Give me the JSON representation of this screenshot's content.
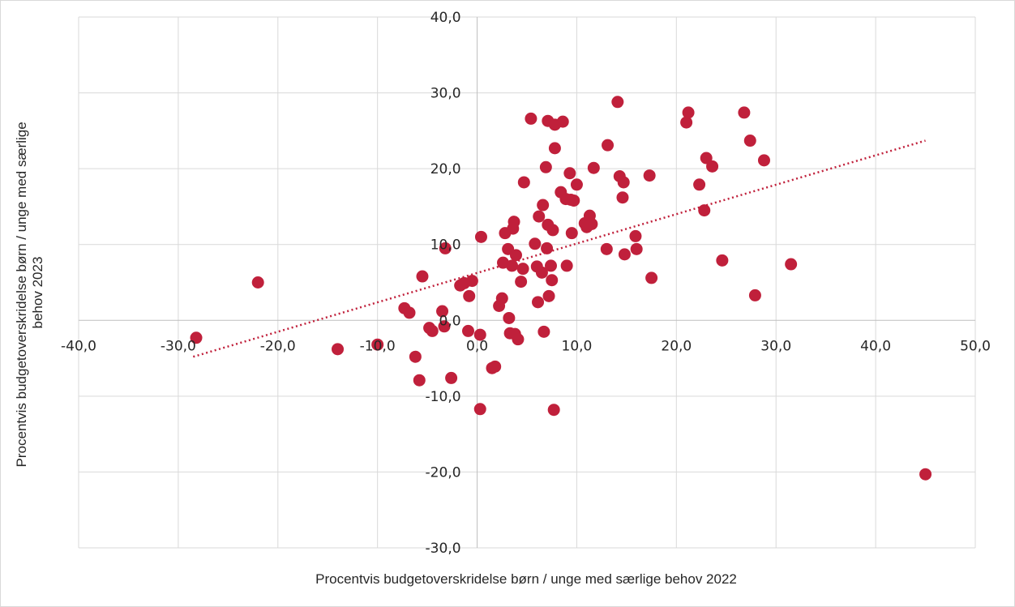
{
  "chart_data": {
    "type": "scatter",
    "title": "",
    "xlabel": "Procentvis budgetoverskridelse børn / unge med særlige behov 2022",
    "ylabel": "Procentvis budgetoverskridelse børn / unge med særlige behov 2023",
    "xlim": [
      -40,
      50
    ],
    "ylim": [
      -30,
      40
    ],
    "x_ticks": [
      -40,
      -30,
      -20,
      -10,
      0,
      10,
      20,
      30,
      40,
      50
    ],
    "y_ticks": [
      -30,
      -20,
      -10,
      0,
      10,
      20,
      30,
      40
    ],
    "x_tick_labels": [
      "-40,0",
      "-30,0",
      "-20,0",
      "-10,0",
      "0,0",
      "10,0",
      "20,0",
      "30,0",
      "40,0",
      "50,0"
    ],
    "y_tick_labels": [
      "-30,0",
      "-20,0",
      "-10,0",
      "0,0",
      "10,0",
      "20,0",
      "30,0",
      "40,0"
    ],
    "grid": true,
    "legend": "none",
    "point_color": "#c0203b",
    "trendline": {
      "type": "linear",
      "style": "dotted",
      "color": "#c0203b",
      "from": [
        -28.5,
        -4.8
      ],
      "to": [
        45,
        23.7
      ]
    },
    "points": [
      [
        -28.2,
        -2.3
      ],
      [
        -22,
        5
      ],
      [
        -14,
        -3.8
      ],
      [
        -10,
        -3.2
      ],
      [
        -7.3,
        1.6
      ],
      [
        -6.8,
        1
      ],
      [
        -6.2,
        -4.8
      ],
      [
        -5.8,
        -7.9
      ],
      [
        -5.5,
        5.8
      ],
      [
        -4.8,
        -1
      ],
      [
        -4.5,
        -1.4
      ],
      [
        -3.5,
        1.2
      ],
      [
        -3.3,
        -0.8
      ],
      [
        -3.2,
        9.5
      ],
      [
        -2.6,
        -7.6
      ],
      [
        -1.7,
        4.6
      ],
      [
        -1.3,
        4.9
      ],
      [
        -0.9,
        -1.4
      ],
      [
        -0.8,
        3.2
      ],
      [
        -0.5,
        5.2
      ],
      [
        0.3,
        -11.7
      ],
      [
        0.4,
        11
      ],
      [
        0.3,
        -1.9
      ],
      [
        1.5,
        -6.3
      ],
      [
        1.8,
        -6.1
      ],
      [
        2.2,
        1.9
      ],
      [
        2.5,
        2.9
      ],
      [
        2.6,
        7.6
      ],
      [
        2.8,
        11.5
      ],
      [
        3.1,
        9.4
      ],
      [
        3.2,
        0.3
      ],
      [
        3.3,
        -1.7
      ],
      [
        3.5,
        7.2
      ],
      [
        3.6,
        12.1
      ],
      [
        3.7,
        13
      ],
      [
        3.8,
        -1.8
      ],
      [
        3.9,
        8.6
      ],
      [
        4.1,
        -2.5
      ],
      [
        4.4,
        5.1
      ],
      [
        4.6,
        6.8
      ],
      [
        4.7,
        18.2
      ],
      [
        5.4,
        26.6
      ],
      [
        5.8,
        10.1
      ],
      [
        6.0,
        7.1
      ],
      [
        6.1,
        2.4
      ],
      [
        6.2,
        13.7
      ],
      [
        6.5,
        6.3
      ],
      [
        6.6,
        15.2
      ],
      [
        6.7,
        -1.5
      ],
      [
        6.9,
        20.2
      ],
      [
        7.0,
        9.5
      ],
      [
        7.1,
        26.3
      ],
      [
        7.1,
        12.6
      ],
      [
        7.2,
        3.2
      ],
      [
        7.4,
        7.2
      ],
      [
        7.5,
        5.3
      ],
      [
        7.6,
        11.9
      ],
      [
        7.7,
        -11.8
      ],
      [
        7.8,
        25.8
      ],
      [
        7.8,
        22.7
      ],
      [
        8.4,
        16.9
      ],
      [
        8.6,
        26.2
      ],
      [
        8.9,
        16
      ],
      [
        9.0,
        7.2
      ],
      [
        9.3,
        19.4
      ],
      [
        9.4,
        15.9
      ],
      [
        9.5,
        11.5
      ],
      [
        9.7,
        15.8
      ],
      [
        10.0,
        17.9
      ],
      [
        10.8,
        12.8
      ],
      [
        11.0,
        12.3
      ],
      [
        11.3,
        13.8
      ],
      [
        11.5,
        12.7
      ],
      [
        11.7,
        20.1
      ],
      [
        13.0,
        9.4
      ],
      [
        13.1,
        23.1
      ],
      [
        14.1,
        28.8
      ],
      [
        14.3,
        19
      ],
      [
        14.6,
        16.2
      ],
      [
        14.7,
        18.2
      ],
      [
        14.8,
        8.7
      ],
      [
        15.9,
        11.1
      ],
      [
        16.0,
        9.4
      ],
      [
        17.3,
        19.1
      ],
      [
        17.5,
        5.6
      ],
      [
        21.0,
        26.1
      ],
      [
        21.2,
        27.4
      ],
      [
        22.3,
        17.9
      ],
      [
        22.8,
        14.5
      ],
      [
        23.0,
        21.4
      ],
      [
        23.6,
        20.3
      ],
      [
        24.6,
        7.9
      ],
      [
        26.8,
        27.4
      ],
      [
        27.4,
        23.7
      ],
      [
        27.9,
        3.3
      ],
      [
        28.8,
        21.1
      ],
      [
        31.5,
        7.4
      ],
      [
        45.0,
        -20.3
      ]
    ]
  }
}
